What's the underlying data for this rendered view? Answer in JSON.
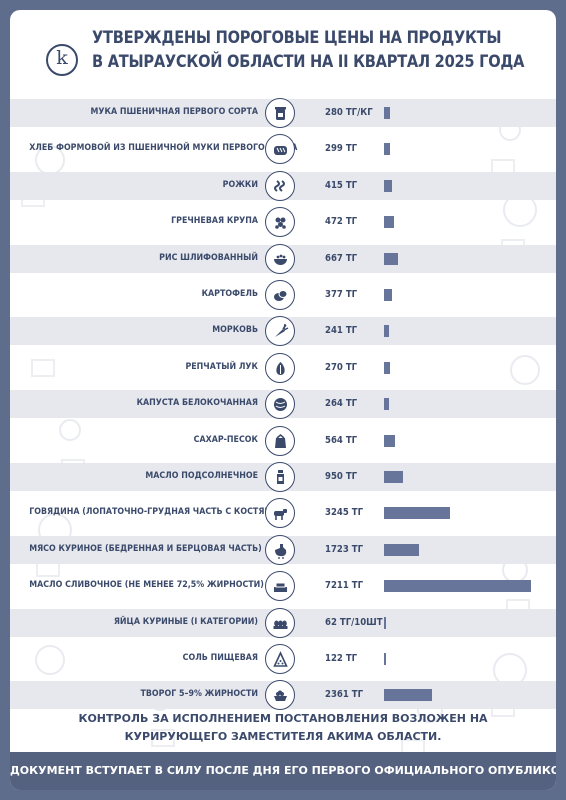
{
  "title_line1": "УТВЕРЖДЕНЫ ПОРОГОВЫЕ ЦЕНЫ НА ПРОДУКТЫ",
  "title_line2": "В АТЫРАУСКОЙ ОБЛАСТИ НА II КВАРТАЛ 2025 ГОДА",
  "logo_letter": "k",
  "colors": {
    "frame": "#5f6d8d",
    "accent": "#3b4a6b",
    "bar": "#67759a",
    "band": "#e6e8ee",
    "footer": "#55627f"
  },
  "chart_data": {
    "type": "bar",
    "orientation": "horizontal",
    "currency_unit": "тг",
    "categories": [
      "МУКА ПШЕНИЧНАЯ ПЕРВОГО СОРТА",
      "ХЛЕБ ФОРМОВОЙ ИЗ ПШЕНИЧНОЙ МУКИ ПЕРВОГО СОРТА",
      "РОЖКИ",
      "ГРЕЧНЕВАЯ КРУПА",
      "РИС ШЛИФОВАННЫЙ",
      "КАРТОФЕЛЬ",
      "МОРКОВЬ",
      "РЕПЧАТЫЙ ЛУК",
      "КАПУСТА БЕЛОКОЧАННАЯ",
      "САХАР-ПЕСОК",
      "МАСЛО ПОДСОЛНЕЧНОЕ",
      "ГОВЯДИНА (ЛОПАТОЧНО-ГРУДНАЯ ЧАСТЬ С КОСТЯМИ)",
      "МЯСО КУРИНОЕ (БЕДРЕННАЯ И БЕРЦОВАЯ ЧАСТЬ)",
      "МАСЛО СЛИВОЧНОЕ (НЕ МЕНЕЕ 72,5% ЖИРНОСТИ)",
      "ЯЙЦА КУРИНЫЕ (I КАТЕГОРИИ)",
      "СОЛЬ ПИЩЕВАЯ",
      "ТВОРОГ 5–9% ЖИРНОСТИ"
    ],
    "values": [
      280,
      299,
      415,
      472,
      667,
      377,
      241,
      270,
      264,
      564,
      950,
      3245,
      1723,
      7211,
      62,
      122,
      2361
    ],
    "value_labels": [
      "280 ТГ/КГ",
      "299 ТГ",
      "415 ТГ",
      "472 ТГ",
      "667 ТГ",
      "377 ТГ",
      "241 ТГ",
      "270 ТГ",
      "264 ТГ",
      "564 ТГ",
      "950 ТГ",
      "3245 ТГ",
      "1723 ТГ",
      "7211 ТГ",
      "62 ТГ/10ШТ",
      "122 ТГ",
      "2361 ТГ"
    ],
    "icons": [
      "flour-jar-icon",
      "bread-icon",
      "pasta-icon",
      "buckwheat-icon",
      "rice-bowl-icon",
      "potato-icon",
      "carrot-icon",
      "onion-icon",
      "cabbage-icon",
      "sugar-bag-icon",
      "oil-bottle-icon",
      "cow-icon",
      "chicken-icon",
      "butter-icon",
      "eggs-icon",
      "salt-icon",
      "cottage-cheese-icon"
    ],
    "xlim": [
      0,
      7211
    ],
    "title": "",
    "xlabel": "",
    "ylabel": ""
  },
  "footnote_line1": "КОНТРОЛЬ ЗА ИСПОЛНЕНИЕМ ПОСТАНОВЛЕНИЯ ВОЗЛОЖЕН НА",
  "footnote_line2": "КУРИРУЮЩЕГО ЗАМЕСТИТЕЛЯ АКИМА ОБЛАСТИ.",
  "footer_text": "ДОКУМЕНТ ВСТУПАЕТ В СИЛУ ПОСЛЕ ДНЯ ЕГО ПЕРВОГО ОФИЦИАЛЬНОГО ОПУБЛИКОВАНИЯ."
}
